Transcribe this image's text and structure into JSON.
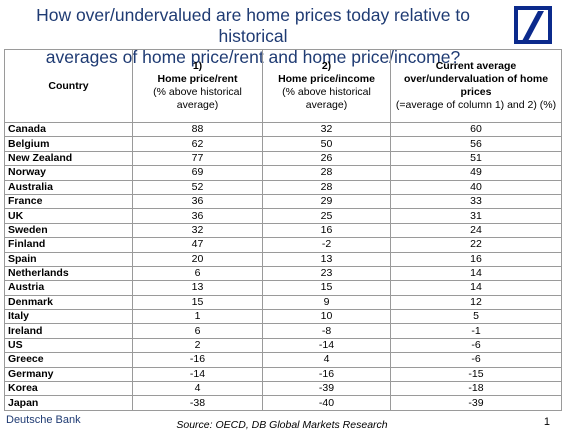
{
  "title": {
    "line1": "How over/undervalued are home prices today relative to historical",
    "line2": "averages of home price/rent and home price/income?"
  },
  "logo_icon": "deutsche-bank-logo",
  "colors": {
    "title": "#1f3b73",
    "logo": "#0b2a8c"
  },
  "table": {
    "headers": {
      "country": "Country",
      "col1_bold": "1)\nHome price/rent",
      "col1_note": "(% above historical average)",
      "col2_bold": "2)\nHome price/income",
      "col2_note": "(% above historical average)",
      "col3_bold": "Current average over/undervaluation of home prices",
      "col3_note": "(=average of column 1) and 2) (%)"
    },
    "rows": [
      {
        "country": "Canada",
        "rent": "88",
        "income": "32",
        "avg": "60"
      },
      {
        "country": "Belgium",
        "rent": "62",
        "income": "50",
        "avg": "56"
      },
      {
        "country": "New Zealand",
        "rent": "77",
        "income": "26",
        "avg": "51"
      },
      {
        "country": "Norway",
        "rent": "69",
        "income": "28",
        "avg": "49"
      },
      {
        "country": "Australia",
        "rent": "52",
        "income": "28",
        "avg": "40"
      },
      {
        "country": "France",
        "rent": "36",
        "income": "29",
        "avg": "33"
      },
      {
        "country": "UK",
        "rent": "36",
        "income": "25",
        "avg": "31"
      },
      {
        "country": "Sweden",
        "rent": "32",
        "income": "16",
        "avg": "24"
      },
      {
        "country": "Finland",
        "rent": "47",
        "income": "-2",
        "avg": "22"
      },
      {
        "country": "Spain",
        "rent": "20",
        "income": "13",
        "avg": "16"
      },
      {
        "country": "Netherlands",
        "rent": "6",
        "income": "23",
        "avg": "14"
      },
      {
        "country": "Austria",
        "rent": "13",
        "income": "15",
        "avg": "14"
      },
      {
        "country": "Denmark",
        "rent": "15",
        "income": "9",
        "avg": "12"
      },
      {
        "country": "Italy",
        "rent": "1",
        "income": "10",
        "avg": "5"
      },
      {
        "country": "Ireland",
        "rent": "6",
        "income": "-8",
        "avg": "-1"
      },
      {
        "country": "US",
        "rent": "2",
        "income": "-14",
        "avg": "-6"
      },
      {
        "country": "Greece",
        "rent": "-16",
        "income": "4",
        "avg": "-6"
      },
      {
        "country": "Germany",
        "rent": "-14",
        "income": "-16",
        "avg": "-15"
      },
      {
        "country": "Korea",
        "rent": "4",
        "income": "-39",
        "avg": "-18"
      },
      {
        "country": "Japan",
        "rent": "-38",
        "income": "-40",
        "avg": "-39"
      }
    ]
  },
  "footer": {
    "bank": "Deutsche Bank",
    "source": "Source:  OECD, DB Global Markets Research",
    "page": "1"
  }
}
